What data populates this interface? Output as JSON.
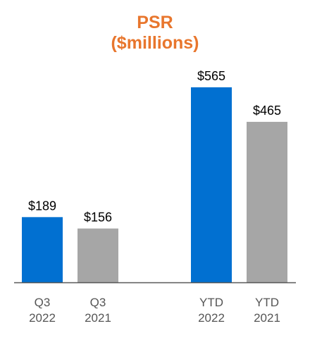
{
  "chart_data": {
    "type": "bar",
    "title": "PSR",
    "subtitle": "($millions)",
    "categories": [
      [
        "Q3",
        "2022"
      ],
      [
        "Q3",
        "2021"
      ],
      [
        "YTD",
        "2022"
      ],
      [
        "YTD",
        "2021"
      ]
    ],
    "values": [
      189,
      156,
      565,
      465
    ],
    "value_labels": [
      "$189",
      "$156",
      "$565",
      "$465"
    ],
    "colors": [
      "#0170D1",
      "#A6A6A6",
      "#0170D1",
      "#A6A6A6"
    ],
    "ylim": [
      0,
      565
    ],
    "grid": false,
    "legend": "none",
    "xlabel": "",
    "ylabel": ""
  }
}
